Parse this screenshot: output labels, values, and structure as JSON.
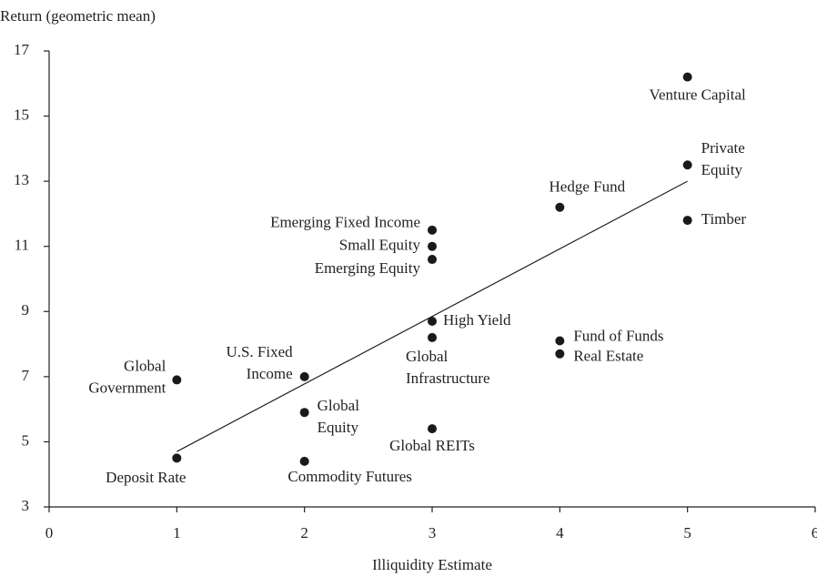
{
  "chart_data": {
    "type": "scatter",
    "y_label": "Return (geometric mean)",
    "x_label": "Illiquidity Estimate",
    "labels": [
      [
        "Deposit Rate"
      ],
      [
        "Global",
        "Government"
      ],
      [
        "U.S. Fixed",
        "Income"
      ],
      [
        "Global",
        "Equity"
      ],
      [
        "Commodity Futures"
      ],
      [
        "Global REITs"
      ],
      [
        "Global",
        "Infrastructure"
      ],
      [
        "High Yield"
      ],
      [
        "Emerging Equity"
      ],
      [
        "Small Equity"
      ],
      [
        "Emerging Fixed Income"
      ],
      [
        "Fund of Funds"
      ],
      [
        "Real Estate"
      ],
      [
        "Hedge Fund"
      ],
      [
        "Private",
        "Equity"
      ],
      [
        "Timber"
      ],
      [
        "Venture Capital"
      ]
    ],
    "x": [
      1,
      1,
      2,
      2,
      2,
      3,
      3,
      3,
      3,
      3,
      3,
      4,
      4,
      4,
      5,
      5,
      5
    ],
    "y": [
      4.5,
      6.9,
      7.0,
      5.9,
      4.4,
      5.4,
      8.2,
      8.7,
      10.6,
      11.0,
      11.5,
      8.1,
      7.7,
      12.2,
      13.5,
      11.8,
      16.2
    ],
    "color": "#1a1a1a",
    "trendline": {
      "x": [
        1,
        5
      ],
      "y": [
        4.7,
        13.0
      ]
    },
    "xlim": [
      0,
      6
    ],
    "xticks": [
      0,
      1,
      2,
      3,
      4,
      5,
      6
    ],
    "ylim": [
      3,
      17
    ],
    "yticks": [
      3,
      5,
      7,
      9,
      11,
      13,
      15,
      17
    ]
  }
}
